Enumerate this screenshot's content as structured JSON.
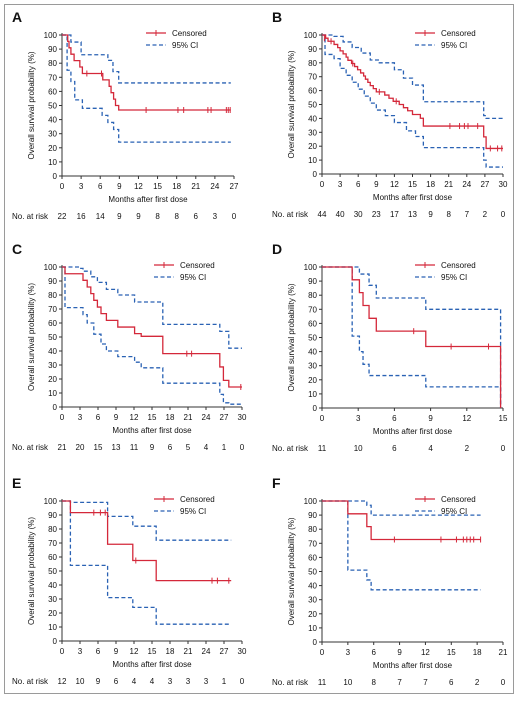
{
  "legend": {
    "censored": "Censored",
    "ci": "95% CI"
  },
  "colors": {
    "survival": "#d4283a",
    "ci": "#2a62b4",
    "axis": "#333333",
    "text": "#111111"
  },
  "chart_data": [
    {
      "panel": "A",
      "type": "line",
      "ylabel": "Overall survival probability (%)",
      "xlabel": "Months after first dose",
      "xlim": [
        0,
        27
      ],
      "xticks": [
        0,
        3,
        6,
        9,
        12,
        15,
        18,
        21,
        24,
        27
      ],
      "ylim": [
        0,
        100
      ],
      "yticks": [
        0,
        10,
        20,
        30,
        40,
        50,
        60,
        70,
        80,
        90,
        100
      ],
      "risk_label": "No. at risk",
      "risk_times": [
        0,
        3,
        6,
        9,
        12,
        15,
        18,
        21,
        24,
        27
      ],
      "at_risk": [
        22,
        16,
        14,
        9,
        9,
        8,
        8,
        6,
        3,
        0
      ],
      "km": [
        [
          0,
          100
        ],
        [
          0.9,
          95.5
        ],
        [
          1.1,
          90.9
        ],
        [
          1.4,
          86.4
        ],
        [
          1.9,
          81.8
        ],
        [
          2.8,
          77.3
        ],
        [
          3.2,
          72.7
        ],
        [
          6.4,
          68.2
        ],
        [
          7.4,
          63.6
        ],
        [
          7.7,
          59.1
        ],
        [
          8.1,
          54.5
        ],
        [
          8.4,
          50
        ],
        [
          8.9,
          46.8
        ],
        [
          26.5,
          46.8
        ]
      ],
      "ci_lower": [
        [
          0,
          100
        ],
        [
          0.8,
          75
        ],
        [
          1.4,
          67
        ],
        [
          2,
          54
        ],
        [
          3.2,
          48
        ],
        [
          6.3,
          43
        ],
        [
          7.2,
          38
        ],
        [
          8.1,
          33
        ],
        [
          8.9,
          24
        ],
        [
          26.5,
          24
        ]
      ],
      "ci_upper": [
        [
          0,
          100
        ],
        [
          1.4,
          95
        ],
        [
          3,
          86
        ],
        [
          6.3,
          86
        ],
        [
          7.2,
          82
        ],
        [
          8,
          74
        ],
        [
          8.9,
          66
        ],
        [
          26.5,
          66
        ]
      ],
      "censored": [
        [
          3.9,
          72.7
        ],
        [
          6.2,
          72.7
        ],
        [
          13.2,
          46.8
        ],
        [
          18.2,
          46.8
        ],
        [
          19.1,
          46.8
        ],
        [
          22.9,
          46.8
        ],
        [
          23.4,
          46.8
        ],
        [
          25.8,
          46.8
        ],
        [
          26.1,
          46.8
        ],
        [
          26.4,
          46.8
        ]
      ]
    },
    {
      "panel": "B",
      "type": "line",
      "ylabel": "Overall survival probability (%)",
      "xlabel": "Months after first dose",
      "xlim": [
        0,
        30
      ],
      "xticks": [
        0,
        3,
        6,
        9,
        12,
        15,
        18,
        21,
        24,
        27,
        30
      ],
      "ylim": [
        0,
        100
      ],
      "yticks": [
        0,
        10,
        20,
        30,
        40,
        50,
        60,
        70,
        80,
        90,
        100
      ],
      "risk_label": "No. at risk",
      "risk_times": [
        0,
        3,
        6,
        9,
        12,
        15,
        18,
        21,
        24,
        27,
        30
      ],
      "at_risk": [
        44,
        40,
        30,
        23,
        17,
        13,
        9,
        8,
        7,
        2,
        0
      ],
      "km": [
        [
          0,
          100
        ],
        [
          0.6,
          97.7
        ],
        [
          1,
          95.5
        ],
        [
          2,
          93.2
        ],
        [
          2.6,
          90.9
        ],
        [
          3,
          88.6
        ],
        [
          3.5,
          86.4
        ],
        [
          4,
          84.1
        ],
        [
          4.3,
          81.8
        ],
        [
          4.9,
          79.5
        ],
        [
          5.4,
          77.3
        ],
        [
          5.9,
          75
        ],
        [
          6.4,
          72.7
        ],
        [
          6.9,
          70.5
        ],
        [
          7.2,
          68.2
        ],
        [
          7.6,
          65.9
        ],
        [
          8,
          63.6
        ],
        [
          8.5,
          61.4
        ],
        [
          9,
          59.1
        ],
        [
          10.4,
          56.8
        ],
        [
          11.1,
          54.5
        ],
        [
          11.8,
          52.3
        ],
        [
          12.8,
          50
        ],
        [
          13.5,
          47.7
        ],
        [
          14.2,
          45.5
        ],
        [
          15,
          42.8
        ],
        [
          16.3,
          40.1
        ],
        [
          16.8,
          34.5
        ],
        [
          26.2,
          34.5
        ],
        [
          26.8,
          26.7
        ],
        [
          27.2,
          18.4
        ],
        [
          30,
          18.4
        ]
      ],
      "ci_lower": [
        [
          0,
          100
        ],
        [
          0.5,
          86
        ],
        [
          2,
          83
        ],
        [
          3,
          76
        ],
        [
          4,
          71
        ],
        [
          5,
          66
        ],
        [
          6,
          61
        ],
        [
          7,
          56
        ],
        [
          8,
          51
        ],
        [
          9,
          46
        ],
        [
          10.5,
          42
        ],
        [
          12,
          37
        ],
        [
          14,
          31
        ],
        [
          15.5,
          27
        ],
        [
          16.8,
          19
        ],
        [
          26.2,
          19
        ],
        [
          26.8,
          10
        ],
        [
          27.2,
          5
        ],
        [
          30,
          5
        ]
      ],
      "ci_upper": [
        [
          0,
          100
        ],
        [
          2,
          99
        ],
        [
          3.5,
          95
        ],
        [
          5,
          91
        ],
        [
          6.5,
          87
        ],
        [
          8,
          82
        ],
        [
          9.5,
          80
        ],
        [
          12,
          75
        ],
        [
          13.5,
          69
        ],
        [
          15,
          64
        ],
        [
          16.8,
          52
        ],
        [
          26.2,
          52
        ],
        [
          26.8,
          42
        ],
        [
          27.2,
          40
        ],
        [
          30,
          40
        ]
      ],
      "censored": [
        [
          0.4,
          97.7
        ],
        [
          1.5,
          95.5
        ],
        [
          5.1,
          79.5
        ],
        [
          9.5,
          59.1
        ],
        [
          12.3,
          52.3
        ],
        [
          21.2,
          34.5
        ],
        [
          22.8,
          34.5
        ],
        [
          23.6,
          34.5
        ],
        [
          24.2,
          34.5
        ],
        [
          25.8,
          34.5
        ],
        [
          27.9,
          18.4
        ],
        [
          29.1,
          18.4
        ],
        [
          29.8,
          18.4
        ]
      ]
    },
    {
      "panel": "C",
      "type": "line",
      "ylabel": "Overall survival probability (%)",
      "xlabel": "Months after first dose",
      "xlim": [
        0,
        30
      ],
      "xticks": [
        0,
        3,
        6,
        9,
        12,
        15,
        18,
        21,
        24,
        27,
        30
      ],
      "ylim": [
        0,
        100
      ],
      "yticks": [
        0,
        10,
        20,
        30,
        40,
        50,
        60,
        70,
        80,
        90,
        100
      ],
      "risk_label": "No. at risk",
      "risk_times": [
        0,
        3,
        6,
        9,
        12,
        15,
        18,
        21,
        24,
        27,
        30
      ],
      "at_risk": [
        21,
        20,
        15,
        13,
        11,
        9,
        6,
        5,
        4,
        1,
        0
      ],
      "km": [
        [
          0,
          100
        ],
        [
          0.5,
          95.2
        ],
        [
          3.5,
          90.5
        ],
        [
          4.2,
          85.7
        ],
        [
          4.8,
          81
        ],
        [
          5.3,
          76.2
        ],
        [
          5.9,
          71.4
        ],
        [
          6.5,
          66.7
        ],
        [
          7.4,
          61.9
        ],
        [
          9.3,
          57.1
        ],
        [
          12.1,
          52.4
        ],
        [
          13.2,
          50.5
        ],
        [
          16.8,
          38.1
        ],
        [
          25.9,
          38.1
        ],
        [
          26.3,
          28.6
        ],
        [
          26.9,
          19
        ],
        [
          27.8,
          14.3
        ],
        [
          30,
          14.3
        ]
      ],
      "ci_lower": [
        [
          0,
          100
        ],
        [
          0.5,
          71
        ],
        [
          3.5,
          66
        ],
        [
          4.2,
          60
        ],
        [
          5.3,
          52
        ],
        [
          6.5,
          45
        ],
        [
          7.4,
          40
        ],
        [
          9.3,
          36
        ],
        [
          12.1,
          32
        ],
        [
          13.2,
          28
        ],
        [
          16.8,
          17
        ],
        [
          25.9,
          17
        ],
        [
          26.3,
          9
        ],
        [
          26.9,
          3
        ],
        [
          27.8,
          2
        ],
        [
          30,
          2
        ]
      ],
      "ci_upper": [
        [
          0,
          100
        ],
        [
          3,
          99
        ],
        [
          3.5,
          97
        ],
        [
          4.8,
          93
        ],
        [
          5.9,
          89
        ],
        [
          7.4,
          84
        ],
        [
          9.3,
          80
        ],
        [
          12.1,
          75
        ],
        [
          16.8,
          59
        ],
        [
          25.9,
          59
        ],
        [
          26.3,
          54
        ],
        [
          27.8,
          42
        ],
        [
          30,
          42
        ]
      ],
      "censored": [
        [
          20.8,
          38.1
        ],
        [
          21.6,
          38.1
        ],
        [
          29.8,
          14.3
        ]
      ]
    },
    {
      "panel": "D",
      "type": "line",
      "ylabel": "Overall survival probability (%)",
      "xlabel": "Months after first dose",
      "xlim": [
        0,
        15
      ],
      "xticks": [
        0,
        3,
        6,
        9,
        12,
        15
      ],
      "ylim": [
        0,
        100
      ],
      "yticks": [
        0,
        10,
        20,
        30,
        40,
        50,
        60,
        70,
        80,
        90,
        100
      ],
      "risk_label": "No. at risk",
      "risk_times": [
        0,
        3,
        6,
        9,
        12,
        15
      ],
      "at_risk": [
        11,
        10,
        6,
        4,
        2,
        0
      ],
      "km": [
        [
          0,
          100
        ],
        [
          2.5,
          90.9
        ],
        [
          3.1,
          81.8
        ],
        [
          3.4,
          72.7
        ],
        [
          3.9,
          63.6
        ],
        [
          4.5,
          54.5
        ],
        [
          8.6,
          43.6
        ],
        [
          14.6,
          43.6
        ],
        [
          14.8,
          0
        ]
      ],
      "ci_lower": [
        [
          0,
          100
        ],
        [
          2.5,
          51
        ],
        [
          3.1,
          40
        ],
        [
          3.4,
          31
        ],
        [
          3.9,
          23
        ],
        [
          4.5,
          23
        ],
        [
          8.6,
          15
        ],
        [
          14.6,
          15
        ],
        [
          14.8,
          0
        ]
      ],
      "ci_upper": [
        [
          0,
          100
        ],
        [
          2.5,
          100
        ],
        [
          3.1,
          95
        ],
        [
          3.9,
          87
        ],
        [
          4.5,
          78
        ],
        [
          8.6,
          70
        ],
        [
          14.6,
          70
        ],
        [
          14.8,
          0
        ]
      ],
      "censored": [
        [
          7.6,
          54.5
        ],
        [
          10.7,
          43.6
        ],
        [
          13.8,
          43.6
        ]
      ]
    },
    {
      "panel": "E",
      "type": "line",
      "ylabel": "Overall survival probability (%)",
      "xlabel": "Months after first dose",
      "xlim": [
        0,
        30
      ],
      "xticks": [
        0,
        3,
        6,
        9,
        12,
        15,
        18,
        21,
        24,
        27,
        30
      ],
      "ylim": [
        0,
        100
      ],
      "yticks": [
        0,
        10,
        20,
        30,
        40,
        50,
        60,
        70,
        80,
        90,
        100
      ],
      "risk_label": "No. at risk",
      "risk_times": [
        0,
        3,
        6,
        9,
        12,
        15,
        18,
        21,
        24,
        27,
        30
      ],
      "at_risk": [
        12,
        10,
        9,
        6,
        4,
        4,
        3,
        3,
        3,
        1,
        0
      ],
      "km": [
        [
          0,
          100
        ],
        [
          1.4,
          91.7
        ],
        [
          7.6,
          69.1
        ],
        [
          11.8,
          57.5
        ],
        [
          15.7,
          43.1
        ],
        [
          28.2,
          43.1
        ]
      ],
      "ci_lower": [
        [
          0,
          100
        ],
        [
          1.4,
          54
        ],
        [
          7.6,
          31
        ],
        [
          11.8,
          24
        ],
        [
          15.7,
          12
        ],
        [
          28.2,
          12
        ]
      ],
      "ci_upper": [
        [
          0,
          100
        ],
        [
          1.4,
          99
        ],
        [
          7.6,
          89
        ],
        [
          11.8,
          82
        ],
        [
          15.7,
          72
        ],
        [
          28.2,
          72
        ]
      ],
      "censored": [
        [
          5.3,
          91.7
        ],
        [
          6.4,
          91.7
        ],
        [
          7.2,
          91.7
        ],
        [
          12.3,
          57.5
        ],
        [
          25,
          43.1
        ],
        [
          25.9,
          43.1
        ],
        [
          27.8,
          43.1
        ]
      ]
    },
    {
      "panel": "F",
      "type": "line",
      "ylabel": "Overall survival probability (%)",
      "xlabel": "Months after first dose",
      "xlim": [
        0,
        21
      ],
      "xticks": [
        0,
        3,
        6,
        9,
        12,
        15,
        18,
        21
      ],
      "ylim": [
        0,
        100
      ],
      "yticks": [
        0,
        10,
        20,
        30,
        40,
        50,
        60,
        70,
        80,
        90,
        100
      ],
      "risk_label": "No. at risk",
      "risk_times": [
        0,
        3,
        6,
        9,
        12,
        15,
        18,
        21
      ],
      "at_risk": [
        11,
        10,
        8,
        7,
        7,
        6,
        2,
        0
      ],
      "km": [
        [
          0,
          100
        ],
        [
          3,
          90.9
        ],
        [
          5.2,
          81.8
        ],
        [
          5.7,
          72.7
        ],
        [
          18.4,
          72.7
        ]
      ],
      "ci_lower": [
        [
          0,
          100
        ],
        [
          3,
          51
        ],
        [
          5.2,
          44
        ],
        [
          5.7,
          37
        ],
        [
          18.4,
          37
        ]
      ],
      "ci_upper": [
        [
          0,
          100
        ],
        [
          5.2,
          97
        ],
        [
          5.7,
          90
        ],
        [
          18.4,
          90
        ]
      ],
      "censored": [
        [
          8.4,
          72.7
        ],
        [
          13.8,
          72.7
        ],
        [
          15.6,
          72.7
        ],
        [
          16.4,
          72.7
        ],
        [
          16.8,
          72.7
        ],
        [
          17.2,
          72.7
        ],
        [
          17.6,
          72.7
        ],
        [
          18.4,
          72.7
        ]
      ]
    }
  ]
}
